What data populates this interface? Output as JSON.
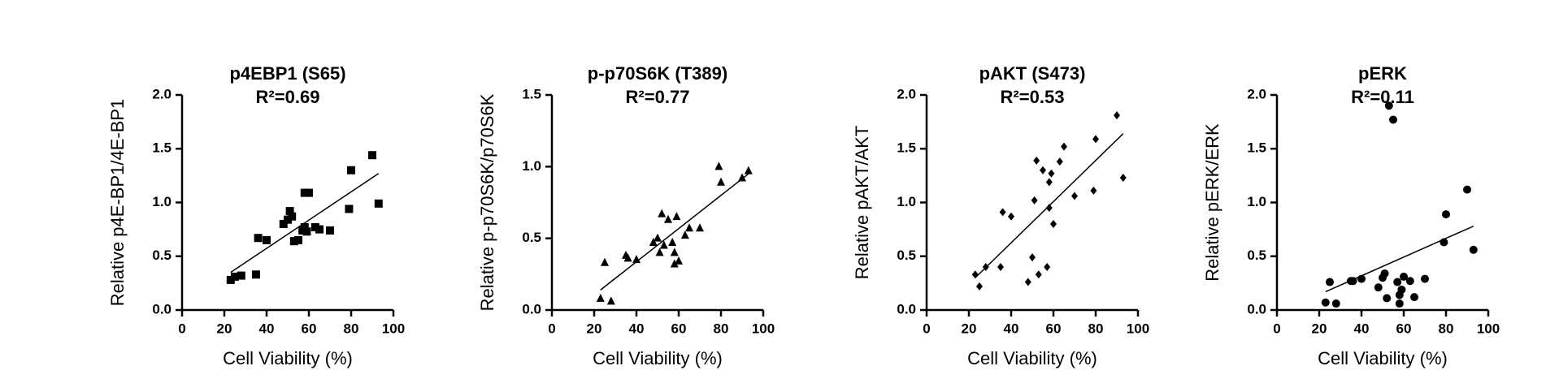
{
  "chart_data": [
    {
      "type": "scatter",
      "title": "p4EBP1 (S65)",
      "subtitle": "R²=0.69",
      "x_label": "Cell Viability (%)",
      "y_label": "Relative p4E-BP1/4E-BP1",
      "marker": "square",
      "color": "#000000",
      "x": [
        23,
        25,
        28,
        35,
        36,
        40,
        48,
        50,
        51,
        52,
        53,
        55,
        57,
        58,
        58,
        59,
        60,
        63,
        65,
        70,
        79,
        80,
        90,
        93
      ],
      "values": [
        0.28,
        0.31,
        0.32,
        0.33,
        0.67,
        0.65,
        0.8,
        0.84,
        0.92,
        0.87,
        0.64,
        0.65,
        0.74,
        0.77,
        1.09,
        0.73,
        1.09,
        0.77,
        0.75,
        0.74,
        0.94,
        1.3,
        1.44,
        0.99
      ],
      "fit": {
        "x": [
          23,
          93
        ],
        "y": [
          0.35,
          1.27
        ]
      },
      "xlim": [
        0,
        100
      ],
      "xticks": [
        0,
        20,
        40,
        60,
        80,
        100
      ],
      "ylim": [
        0,
        2
      ],
      "yticks": [
        {
          "value": 0,
          "label": "0.0"
        },
        {
          "value": 0.5,
          "label": "0.5"
        },
        {
          "value": 1,
          "label": "1.0"
        },
        {
          "value": 1.5,
          "label": "1.5"
        },
        {
          "value": 2,
          "label": "2.0"
        }
      ]
    },
    {
      "type": "scatter",
      "title": "p-p70S6K (T389)",
      "subtitle": "R²=0.77",
      "x_label": "Cell Viability (%)",
      "y_label": "Relative p-p70S6K/p70S6K",
      "marker": "triangle",
      "color": "#000000",
      "x": [
        23,
        25,
        28,
        35,
        36,
        40,
        48,
        50,
        51,
        52,
        53,
        55,
        57,
        58,
        58,
        59,
        60,
        63,
        65,
        70,
        79,
        80,
        90,
        93
      ],
      "values": [
        0.08,
        0.33,
        0.06,
        0.38,
        0.36,
        0.35,
        0.47,
        0.5,
        0.4,
        0.67,
        0.45,
        0.63,
        0.47,
        0.32,
        0.4,
        0.65,
        0.34,
        0.52,
        0.57,
        0.57,
        1.0,
        0.89,
        0.92,
        0.97
      ],
      "fit": {
        "x": [
          23,
          93
        ],
        "y": [
          0.14,
          0.95
        ]
      },
      "xlim": [
        0,
        100
      ],
      "xticks": [
        0,
        20,
        40,
        60,
        80,
        100
      ],
      "ylim": [
        0,
        1.5
      ],
      "yticks": [
        {
          "value": 0,
          "label": "0.0"
        },
        {
          "value": 0.5,
          "label": "0.5"
        },
        {
          "value": 1,
          "label": "1.0"
        },
        {
          "value": 1.5,
          "label": "1.5"
        }
      ]
    },
    {
      "type": "scatter",
      "title": "pAKT (S473)",
      "subtitle": "R²=0.53",
      "x_label": "Cell Viability (%)",
      "y_label": "Relative pAKT/AKT",
      "marker": "diamond",
      "color": "#000000",
      "x": [
        23,
        25,
        28,
        35,
        36,
        40,
        48,
        50,
        51,
        52,
        53,
        55,
        57,
        58,
        58,
        59,
        60,
        63,
        65,
        70,
        79,
        80,
        90,
        93
      ],
      "values": [
        0.33,
        0.22,
        0.4,
        0.4,
        0.91,
        0.87,
        0.26,
        0.49,
        1.02,
        1.39,
        0.33,
        1.3,
        0.4,
        1.19,
        0.95,
        1.27,
        0.8,
        1.38,
        1.52,
        1.06,
        1.11,
        1.59,
        1.81,
        1.23
      ],
      "fit": {
        "x": [
          23,
          93
        ],
        "y": [
          0.3,
          1.64
        ]
      },
      "xlim": [
        0,
        100
      ],
      "xticks": [
        0,
        20,
        40,
        60,
        80,
        100
      ],
      "ylim": [
        0,
        2
      ],
      "yticks": [
        {
          "value": 0,
          "label": "0.0"
        },
        {
          "value": 0.5,
          "label": "0.5"
        },
        {
          "value": 1,
          "label": "1.0"
        },
        {
          "value": 1.5,
          "label": "1.5"
        },
        {
          "value": 2,
          "label": "2.0"
        }
      ]
    },
    {
      "type": "scatter",
      "title": "pERK",
      "subtitle": "R²=0.11",
      "x_label": "Cell Viability (%)",
      "y_label": "Relative pERK/ERK",
      "marker": "circle",
      "color": "#000000",
      "x": [
        23,
        25,
        28,
        35,
        36,
        40,
        48,
        50,
        51,
        52,
        53,
        55,
        57,
        58,
        58,
        59,
        60,
        63,
        65,
        70,
        79,
        80,
        90,
        93
      ],
      "values": [
        0.07,
        0.26,
        0.06,
        0.27,
        0.27,
        0.29,
        0.21,
        0.3,
        0.34,
        0.11,
        1.9,
        1.77,
        0.26,
        0.14,
        0.06,
        0.19,
        0.31,
        0.27,
        0.12,
        0.29,
        0.63,
        0.89,
        1.12,
        0.56
      ],
      "fit": {
        "x": [
          23,
          93
        ],
        "y": [
          0.17,
          0.78
        ]
      },
      "xlim": [
        0,
        100
      ],
      "xticks": [
        0,
        20,
        40,
        60,
        80,
        100
      ],
      "ylim": [
        0,
        2
      ],
      "yticks": [
        {
          "value": 0,
          "label": "0.0"
        },
        {
          "value": 0.5,
          "label": "0.5"
        },
        {
          "value": 1,
          "label": "1.0"
        },
        {
          "value": 1.5,
          "label": "1.5"
        },
        {
          "value": 2,
          "label": "2.0"
        }
      ]
    }
  ]
}
